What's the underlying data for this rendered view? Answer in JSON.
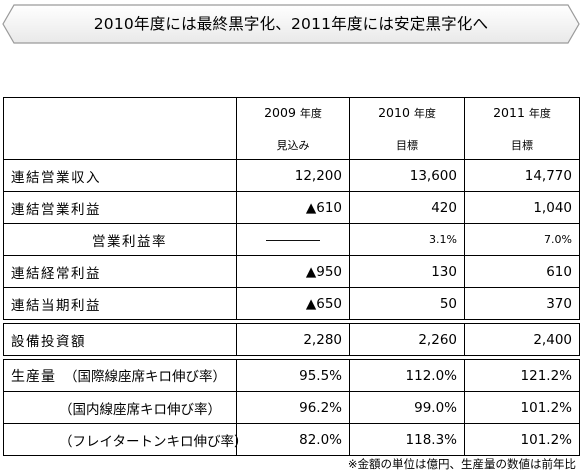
{
  "title": "2010年度には最終黒字化、2011年度には安定黒字化へ",
  "columns": [
    {
      "year": "2009",
      "suffix": "年度",
      "sub": "見込み"
    },
    {
      "year": "2010",
      "suffix": "年度",
      "sub": "目標"
    },
    {
      "year": "2011",
      "suffix": "年度",
      "sub": "目標"
    }
  ],
  "rows": [
    {
      "label": "連結営業収入",
      "values": [
        "12,200",
        "13,600",
        "14,770"
      ]
    },
    {
      "label": "連結営業利益",
      "values": [
        "▲610",
        "420",
        "1,040"
      ]
    },
    {
      "label": "営業利益率",
      "values": [
        "――――",
        "3.1%",
        "7.0%"
      ]
    },
    {
      "label": "連結経常利益",
      "values": [
        "▲950",
        "130",
        "610"
      ]
    },
    {
      "label": "連結当期利益",
      "values": [
        "▲650",
        "50",
        "370"
      ]
    }
  ],
  "capex": {
    "label": "設備投資額",
    "values": [
      "2,280",
      "2,260",
      "2,400"
    ]
  },
  "production": {
    "label": "生産量",
    "rows": [
      {
        "label": "（国際線座席キロ伸び率）",
        "values": [
          "95.5%",
          "112.0%",
          "121.2%"
        ]
      },
      {
        "label": "（国内線座席キロ伸び率）",
        "values": [
          "96.2%",
          "99.0%",
          "101.2%"
        ]
      },
      {
        "label": "（フレイタートンキロ伸び率）",
        "values": [
          "82.0%",
          "118.3%",
          "101.2%"
        ]
      }
    ]
  },
  "footnote": "※金額の単位は億円、生産量の数値は前年比",
  "colors": {
    "banner_fill": "#f2f2f2",
    "banner_stroke": "#9a9a9a"
  }
}
